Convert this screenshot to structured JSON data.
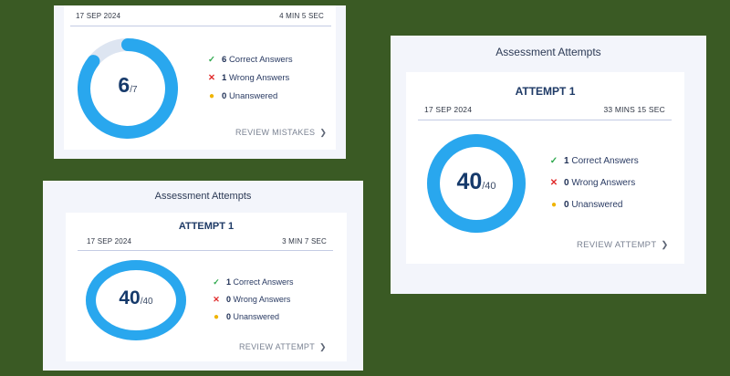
{
  "colors": {
    "background": "#3a5a24",
    "ring": "#29a7ee",
    "ring_track": "#dde5f1",
    "check": "#2fa94e",
    "cross": "#e02b2b",
    "unanswered": "#f0b400"
  },
  "card1": {
    "date": "17 SEP 2024",
    "time": "4 MIN 5 SEC",
    "score": "6",
    "total": "/7",
    "progress": 0.857,
    "stats": [
      {
        "count": "6",
        "label": "Correct Answers",
        "icon": "check-icon"
      },
      {
        "count": "1",
        "label": "Wrong Answers",
        "icon": "cross-icon"
      },
      {
        "count": "0",
        "label": "Unanswered",
        "icon": "dot-icon"
      }
    ],
    "review_label": "REVIEW MISTAKES",
    "review_icon": "chevron-right-icon"
  },
  "card2": {
    "panel_title": "Assessment Attempts",
    "attempt_title": "ATTEMPT 1",
    "date": "17 SEP 2024",
    "time": "3 MIN 7 SEC",
    "score": "40",
    "total": "/40",
    "progress": 1,
    "stats": [
      {
        "count": "1",
        "label": "Correct Answers",
        "icon": "check-icon"
      },
      {
        "count": "0",
        "label": "Wrong Answers",
        "icon": "cross-icon"
      },
      {
        "count": "0",
        "label": "Unanswered",
        "icon": "dot-icon"
      }
    ],
    "review_label": "REVIEW ATTEMPT",
    "review_icon": "chevron-right-icon"
  },
  "card3": {
    "panel_title": "Assessment Attempts",
    "attempt_title": "ATTEMPT 1",
    "date": "17 SEP 2024",
    "time": "33 MINS 15 SEC",
    "score": "40",
    "total": "/40",
    "progress": 1,
    "stats": [
      {
        "count": "1",
        "label": "Correct Answers",
        "icon": "check-icon"
      },
      {
        "count": "0",
        "label": "Wrong Answers",
        "icon": "cross-icon"
      },
      {
        "count": "0",
        "label": "Unanswered",
        "icon": "dot-icon"
      }
    ],
    "review_label": "REVIEW ATTEMPT",
    "review_icon": "chevron-right-icon"
  }
}
